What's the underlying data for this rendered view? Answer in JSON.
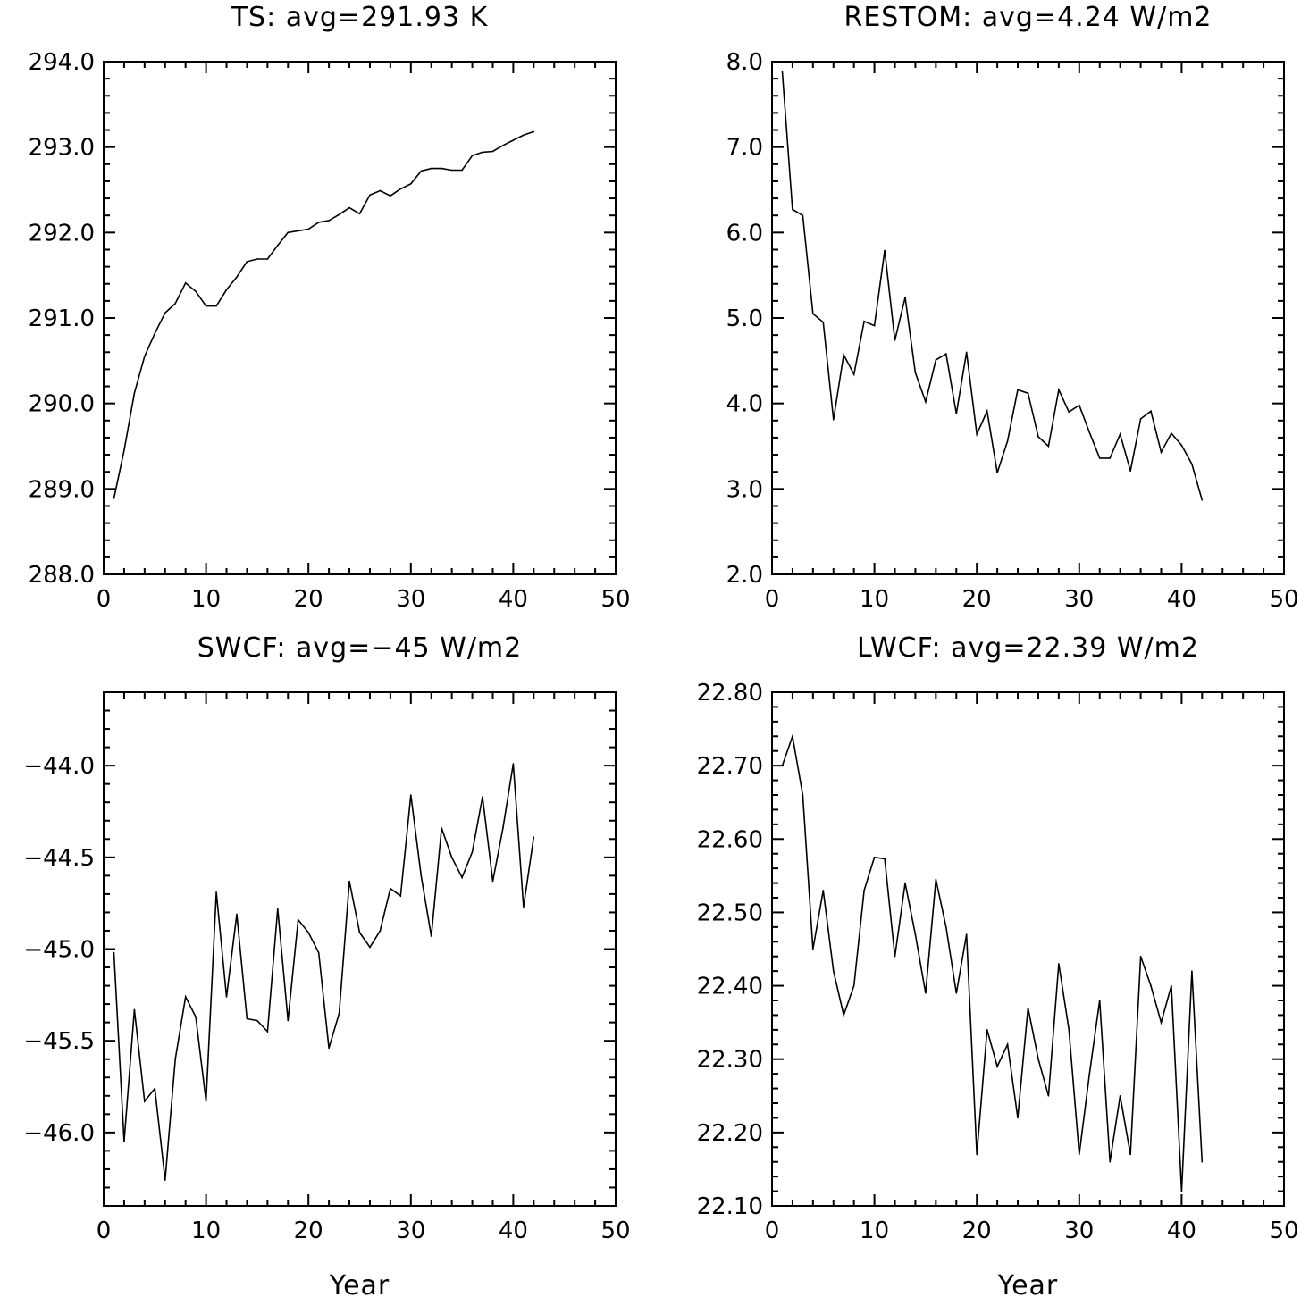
{
  "chart_data": [
    {
      "type": "line",
      "title": "TS: avg=291.93 K",
      "xlabel": "",
      "ylabel": "",
      "xlim": [
        0,
        50
      ],
      "ylim": [
        288.0,
        294.0
      ],
      "x_ticks": [
        "0",
        "10",
        "20",
        "30",
        "40",
        "50"
      ],
      "y_ticks": [
        "288.0",
        "289.0",
        "290.0",
        "291.0",
        "292.0",
        "293.0",
        "294.0"
      ],
      "grid": false,
      "series": [
        {
          "x": [
            1,
            2,
            3,
            4,
            5,
            6,
            7,
            8,
            9,
            10,
            11,
            12,
            13,
            14,
            15,
            16,
            17,
            18,
            19,
            20,
            21,
            22,
            23,
            24,
            25,
            26,
            27,
            28,
            29,
            30,
            31,
            32,
            33,
            34,
            35,
            36,
            37,
            38,
            39,
            40,
            41,
            42
          ],
          "values": [
            288.89,
            289.45,
            290.12,
            290.55,
            290.82,
            291.06,
            291.17,
            291.41,
            291.31,
            291.14,
            291.14,
            291.33,
            291.48,
            291.66,
            291.69,
            291.69,
            291.85,
            292.0,
            292.02,
            292.04,
            292.12,
            292.14,
            292.21,
            292.29,
            292.22,
            292.44,
            292.49,
            292.43,
            292.51,
            292.57,
            292.72,
            292.75,
            292.75,
            292.73,
            292.73,
            292.9,
            292.94,
            292.95,
            293.02,
            293.08,
            293.14,
            293.18
          ]
        }
      ]
    },
    {
      "type": "line",
      "title": "RESTOM: avg=4.24 W/m2",
      "xlabel": "",
      "ylabel": "",
      "xlim": [
        0,
        50
      ],
      "ylim": [
        2.0,
        8.0
      ],
      "x_ticks": [
        "0",
        "10",
        "20",
        "30",
        "40",
        "50"
      ],
      "y_ticks": [
        "2.0",
        "3.0",
        "4.0",
        "5.0",
        "6.0",
        "7.0",
        "8.0"
      ],
      "grid": false,
      "series": [
        {
          "x": [
            1,
            2,
            3,
            4,
            5,
            6,
            7,
            8,
            9,
            10,
            11,
            12,
            13,
            14,
            15,
            16,
            17,
            18,
            19,
            20,
            21,
            22,
            23,
            24,
            25,
            26,
            27,
            28,
            29,
            30,
            31,
            32,
            33,
            34,
            35,
            36,
            37,
            38,
            39,
            40,
            41,
            42
          ],
          "values": [
            7.88,
            6.27,
            6.2,
            5.05,
            4.95,
            3.81,
            4.57,
            4.34,
            4.96,
            4.91,
            5.79,
            4.74,
            5.24,
            4.36,
            4.02,
            4.51,
            4.58,
            3.88,
            4.6,
            3.64,
            3.91,
            3.19,
            3.56,
            4.16,
            4.12,
            3.61,
            3.5,
            4.16,
            3.9,
            3.98,
            3.66,
            3.36,
            3.36,
            3.64,
            3.21,
            3.82,
            3.91,
            3.43,
            3.65,
            3.51,
            3.29,
            2.87
          ]
        }
      ]
    },
    {
      "type": "line",
      "title": "SWCF: avg=−45 W/m2",
      "xlabel": "Year",
      "ylabel": "",
      "xlim": [
        0,
        50
      ],
      "ylim": [
        -46.4,
        -43.6
      ],
      "x_ticks": [
        "0",
        "10",
        "20",
        "30",
        "40",
        "50"
      ],
      "y_ticks": [
        "−46.0",
        "−45.5",
        "−45.0",
        "−44.5",
        "−44.0"
      ],
      "grid": false,
      "series": [
        {
          "x": [
            1,
            2,
            3,
            4,
            5,
            6,
            7,
            8,
            9,
            10,
            11,
            12,
            13,
            14,
            15,
            16,
            17,
            18,
            19,
            20,
            21,
            22,
            23,
            24,
            25,
            26,
            27,
            28,
            29,
            30,
            31,
            32,
            33,
            34,
            35,
            36,
            37,
            38,
            39,
            40,
            41,
            42
          ],
          "values": [
            -45.02,
            -46.05,
            -45.33,
            -45.83,
            -45.76,
            -46.26,
            -45.6,
            -45.26,
            -45.37,
            -45.83,
            -44.69,
            -45.26,
            -44.81,
            -45.38,
            -45.39,
            -45.45,
            -44.78,
            -45.39,
            -44.84,
            -44.91,
            -45.02,
            -45.54,
            -45.35,
            -44.63,
            -44.91,
            -44.99,
            -44.9,
            -44.67,
            -44.71,
            -44.16,
            -44.6,
            -44.93,
            -44.34,
            -44.5,
            -44.61,
            -44.47,
            -44.17,
            -44.63,
            -44.34,
            -43.99,
            -44.77,
            -44.39
          ]
        }
      ]
    },
    {
      "type": "line",
      "title": "LWCF: avg=22.39 W/m2",
      "xlabel": "Year",
      "ylabel": "",
      "xlim": [
        0,
        50
      ],
      "ylim": [
        22.1,
        22.8
      ],
      "x_ticks": [
        "0",
        "10",
        "20",
        "30",
        "40",
        "50"
      ],
      "y_ticks": [
        "22.10",
        "22.20",
        "22.30",
        "22.40",
        "22.50",
        "22.60",
        "22.70",
        "22.80"
      ],
      "grid": false,
      "series": [
        {
          "x": [
            1,
            2,
            3,
            4,
            5,
            6,
            7,
            8,
            9,
            10,
            11,
            12,
            13,
            14,
            15,
            16,
            17,
            18,
            19,
            20,
            21,
            22,
            23,
            24,
            25,
            26,
            27,
            28,
            29,
            30,
            31,
            32,
            33,
            34,
            35,
            36,
            37,
            38,
            39,
            40,
            41,
            42
          ],
          "values": [
            22.7,
            22.74,
            22.66,
            22.45,
            22.53,
            22.42,
            22.36,
            22.4,
            22.53,
            22.575,
            22.573,
            22.44,
            22.54,
            22.47,
            22.39,
            22.545,
            22.48,
            22.39,
            22.47,
            22.17,
            22.34,
            22.29,
            22.32,
            22.22,
            22.37,
            22.3,
            22.25,
            22.43,
            22.34,
            22.17,
            22.28,
            22.38,
            22.16,
            22.25,
            22.17,
            22.44,
            22.4,
            22.35,
            22.4,
            22.12,
            22.42,
            22.16
          ]
        }
      ]
    }
  ]
}
